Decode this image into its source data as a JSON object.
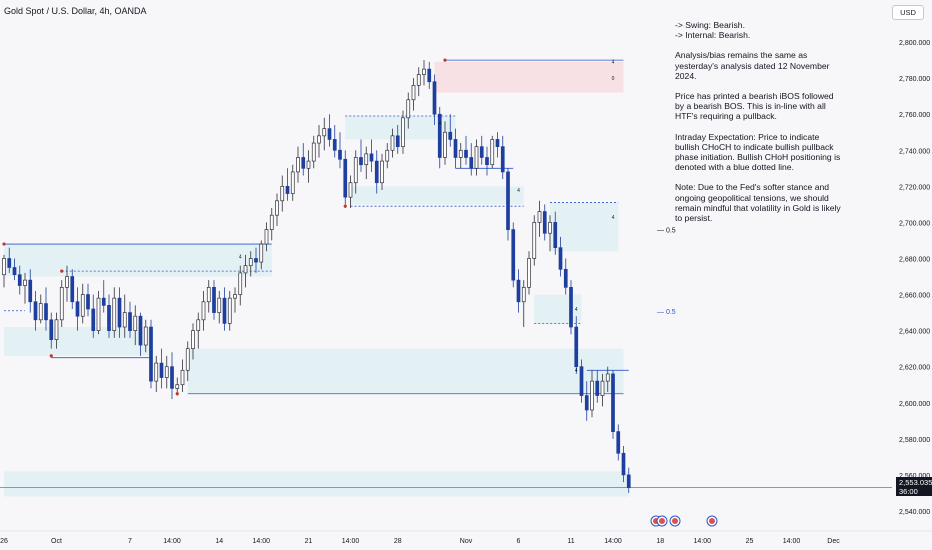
{
  "header": {
    "title": "Gold Spot / U.S. Dollar, 4h, OANDA",
    "currency_button": "USD"
  },
  "analysis": {
    "swing": "-> Swing:  Bearish.",
    "internal": "-> Internal:  Bearish.",
    "p1": "Analysis/bias remains the same as yesterday's analysis dated 12 November 2024.",
    "p2": "Price has printed a bearish iBOS followed by a bearish BOS.  This is in-line with all HTF's requiring a pullback.",
    "p3": "Intraday Expectation: Price to indicate bullish CHoCH to indicate bullish pullback phase initiation.  Bullish CHoH positioning is denoted with a blue dotted line.",
    "p4": "Note: Due to the Fed's softer stance and ongoing geopolitical tensions, we should remain mindful that volatility in Gold is likely to persist."
  },
  "price_tag": {
    "price": "2,553.035",
    "countdown": "36:00"
  },
  "colors": {
    "bull": "#2e2f38",
    "bear": "#1e3f9e",
    "zone": "#e4f1f4",
    "supply": "#f8e1e4",
    "line": "#2c55c9",
    "axis_text": "#131722"
  },
  "chart_data": {
    "type": "candlestick",
    "title": "Gold Spot / U.S. Dollar, 4h, OANDA",
    "ylim": [
      2535,
      2815
    ],
    "y_ticks": [
      "2,800.000",
      "2,780.000",
      "2,760.000",
      "2,740.000",
      "2,720.000",
      "2,700.000",
      "2,680.000",
      "2,660.000",
      "2,640.000",
      "2,620.000",
      "2,600.000",
      "2,580.000",
      "2,560.000",
      "2,540.000"
    ],
    "y_tick_values": [
      2800,
      2780,
      2760,
      2740,
      2720,
      2700,
      2680,
      2660,
      2640,
      2620,
      2600,
      2580,
      2560,
      2540
    ],
    "x_ticks": [
      {
        "label": "26",
        "i": 0
      },
      {
        "label": "Oct",
        "i": 10
      },
      {
        "label": "7",
        "i": 24
      },
      {
        "label": "14:00",
        "i": 32
      },
      {
        "label": "14",
        "i": 41
      },
      {
        "label": "14:00",
        "i": 49
      },
      {
        "label": "21",
        "i": 58
      },
      {
        "label": "14:00",
        "i": 66
      },
      {
        "label": "28",
        "i": 75
      },
      {
        "label": "Nov",
        "i": 88
      },
      {
        "label": "6",
        "i": 98
      },
      {
        "label": "11",
        "i": 108
      },
      {
        "label": "14:00",
        "i": 116
      },
      {
        "label": "18",
        "i": 125
      },
      {
        "label": "14:00",
        "i": 133
      },
      {
        "label": "25",
        "i": 142
      },
      {
        "label": "14:00",
        "i": 150
      },
      {
        "label": "Dec",
        "i": 158
      }
    ],
    "fib_labels": [
      {
        "label": "0.5",
        "value": 2696
      },
      {
        "label": "0.5",
        "value": 2651
      }
    ],
    "zones": [
      {
        "type": "demand",
        "i0": 0,
        "i1": 51,
        "y0": 2670,
        "y1": 2688
      },
      {
        "type": "demand",
        "i0": 0,
        "i1": 28,
        "y0": 2626,
        "y1": 2642
      },
      {
        "type": "demand",
        "i0": 35,
        "i1": 118,
        "y0": 2605,
        "y1": 2630
      },
      {
        "type": "demand",
        "i0": 65,
        "i1": 86,
        "y0": 2746,
        "y1": 2759
      },
      {
        "type": "demand",
        "i0": 66,
        "i1": 99,
        "y0": 2710,
        "y1": 2720
      },
      {
        "type": "demand",
        "i0": 104,
        "i1": 117,
        "y0": 2684,
        "y1": 2711
      },
      {
        "type": "demand",
        "i0": 101,
        "i1": 110,
        "y0": 2644,
        "y1": 2660
      },
      {
        "type": "demand",
        "i0": 0,
        "i1": 119,
        "y0": 2548,
        "y1": 2562
      },
      {
        "type": "supply",
        "i0": 82,
        "i1": 118,
        "y0": 2772,
        "y1": 2789
      }
    ],
    "lines": [
      {
        "i0": 0,
        "i1": 51,
        "y": 2688,
        "style": "solid"
      },
      {
        "i0": 11,
        "i1": 51,
        "y": 2673,
        "style": "dashed"
      },
      {
        "i0": 9,
        "i1": 28,
        "y": 2625,
        "style": "solid"
      },
      {
        "i0": 35,
        "i1": 118,
        "y": 2605,
        "style": "solid"
      },
      {
        "i0": 65,
        "i1": 86,
        "y": 2759,
        "style": "dashed"
      },
      {
        "i0": 66,
        "i1": 99,
        "y": 2709,
        "style": "dashed"
      },
      {
        "i0": 84,
        "i1": 118,
        "y": 2790,
        "style": "solid"
      },
      {
        "i0": 86,
        "i1": 97,
        "y": 2730,
        "style": "solid"
      },
      {
        "i0": 104,
        "i1": 117,
        "y": 2711,
        "style": "dashed"
      },
      {
        "i0": 101,
        "i1": 110,
        "y": 2644,
        "style": "dashed"
      },
      {
        "i0": 111,
        "i1": 119,
        "y": 2618,
        "style": "solid"
      },
      {
        "i0": 0,
        "i1": 4,
        "y": 2651,
        "style": "dashed"
      }
    ],
    "markers": [
      {
        "label": "4",
        "i": 45,
        "y": 2680
      },
      {
        "label": "4",
        "i": 116,
        "y": 2788
      },
      {
        "label": "0",
        "i": 116,
        "y": 2779
      },
      {
        "label": "4",
        "i": 83,
        "y": 2754
      },
      {
        "label": "4",
        "i": 98,
        "y": 2717
      },
      {
        "label": "4",
        "i": 116,
        "y": 2702
      },
      {
        "label": "4",
        "i": 109,
        "y": 2651
      },
      {
        "label": "4",
        "i": 109,
        "y": 2617
      }
    ],
    "candles": [
      [
        2671,
        2682,
        2664,
        2680
      ],
      [
        2680,
        2686,
        2672,
        2675
      ],
      [
        2675,
        2680,
        2668,
        2671
      ],
      [
        2671,
        2676,
        2660,
        2665
      ],
      [
        2665,
        2672,
        2655,
        2668
      ],
      [
        2668,
        2674,
        2650,
        2656
      ],
      [
        2656,
        2662,
        2640,
        2646
      ],
      [
        2646,
        2660,
        2644,
        2655
      ],
      [
        2655,
        2664,
        2640,
        2646
      ],
      [
        2646,
        2650,
        2630,
        2635
      ],
      [
        2635,
        2650,
        2630,
        2646
      ],
      [
        2646,
        2668,
        2642,
        2664
      ],
      [
        2664,
        2676,
        2656,
        2670
      ],
      [
        2670,
        2674,
        2652,
        2656
      ],
      [
        2656,
        2664,
        2640,
        2648
      ],
      [
        2648,
        2666,
        2644,
        2660
      ],
      [
        2660,
        2666,
        2648,
        2652
      ],
      [
        2652,
        2660,
        2636,
        2640
      ],
      [
        2640,
        2662,
        2638,
        2658
      ],
      [
        2658,
        2668,
        2650,
        2654
      ],
      [
        2654,
        2660,
        2636,
        2640
      ],
      [
        2640,
        2664,
        2636,
        2658
      ],
      [
        2658,
        2664,
        2636,
        2642
      ],
      [
        2642,
        2660,
        2636,
        2650
      ],
      [
        2650,
        2656,
        2636,
        2640
      ],
      [
        2640,
        2654,
        2632,
        2648
      ],
      [
        2648,
        2650,
        2626,
        2632
      ],
      [
        2632,
        2646,
        2628,
        2642
      ],
      [
        2642,
        2646,
        2608,
        2612
      ],
      [
        2612,
        2626,
        2606,
        2622
      ],
      [
        2622,
        2630,
        2608,
        2614
      ],
      [
        2614,
        2626,
        2608,
        2620
      ],
      [
        2620,
        2628,
        2602,
        2608
      ],
      [
        2608,
        2614,
        2604,
        2610
      ],
      [
        2610,
        2624,
        2606,
        2618
      ],
      [
        2618,
        2634,
        2612,
        2630
      ],
      [
        2630,
        2644,
        2624,
        2640
      ],
      [
        2640,
        2650,
        2630,
        2646
      ],
      [
        2646,
        2662,
        2640,
        2656
      ],
      [
        2656,
        2668,
        2650,
        2664
      ],
      [
        2664,
        2668,
        2646,
        2650
      ],
      [
        2650,
        2662,
        2644,
        2658
      ],
      [
        2658,
        2664,
        2640,
        2644
      ],
      [
        2644,
        2662,
        2640,
        2658
      ],
      [
        2658,
        2664,
        2650,
        2660
      ],
      [
        2660,
        2676,
        2654,
        2672
      ],
      [
        2672,
        2682,
        2664,
        2676
      ],
      [
        2676,
        2684,
        2670,
        2680
      ],
      [
        2680,
        2686,
        2672,
        2678
      ],
      [
        2678,
        2690,
        2674,
        2688
      ],
      [
        2688,
        2700,
        2684,
        2696
      ],
      [
        2696,
        2708,
        2690,
        2704
      ],
      [
        2704,
        2716,
        2698,
        2712
      ],
      [
        2712,
        2726,
        2706,
        2720
      ],
      [
        2720,
        2730,
        2712,
        2716
      ],
      [
        2716,
        2732,
        2712,
        2728
      ],
      [
        2728,
        2742,
        2722,
        2736
      ],
      [
        2736,
        2744,
        2726,
        2730
      ],
      [
        2730,
        2740,
        2722,
        2734
      ],
      [
        2734,
        2748,
        2730,
        2744
      ],
      [
        2744,
        2754,
        2736,
        2748
      ],
      [
        2748,
        2758,
        2740,
        2752
      ],
      [
        2752,
        2760,
        2742,
        2746
      ],
      [
        2746,
        2754,
        2736,
        2740
      ],
      [
        2740,
        2750,
        2730,
        2735
      ],
      [
        2735,
        2740,
        2708,
        2714
      ],
      [
        2714,
        2726,
        2708,
        2722
      ],
      [
        2722,
        2740,
        2716,
        2736
      ],
      [
        2736,
        2746,
        2728,
        2732
      ],
      [
        2732,
        2742,
        2724,
        2738
      ],
      [
        2738,
        2746,
        2728,
        2734
      ],
      [
        2734,
        2740,
        2716,
        2722
      ],
      [
        2722,
        2738,
        2718,
        2734
      ],
      [
        2734,
        2744,
        2730,
        2740
      ],
      [
        2740,
        2752,
        2736,
        2748
      ],
      [
        2748,
        2754,
        2738,
        2742
      ],
      [
        2742,
        2762,
        2738,
        2758
      ],
      [
        2758,
        2772,
        2752,
        2768
      ],
      [
        2768,
        2780,
        2762,
        2776
      ],
      [
        2776,
        2786,
        2770,
        2782
      ],
      [
        2782,
        2790,
        2776,
        2785
      ],
      [
        2785,
        2789,
        2774,
        2778
      ],
      [
        2778,
        2782,
        2754,
        2760
      ],
      [
        2760,
        2764,
        2730,
        2736
      ],
      [
        2736,
        2756,
        2732,
        2750
      ],
      [
        2750,
        2760,
        2742,
        2746
      ],
      [
        2746,
        2752,
        2730,
        2736
      ],
      [
        2736,
        2744,
        2730,
        2740
      ],
      [
        2740,
        2748,
        2732,
        2736
      ],
      [
        2736,
        2744,
        2726,
        2730
      ],
      [
        2730,
        2746,
        2726,
        2742
      ],
      [
        2742,
        2748,
        2732,
        2736
      ],
      [
        2736,
        2742,
        2726,
        2732
      ],
      [
        2732,
        2748,
        2730,
        2746
      ],
      [
        2746,
        2750,
        2736,
        2742
      ],
      [
        2742,
        2748,
        2724,
        2728
      ],
      [
        2728,
        2730,
        2690,
        2696
      ],
      [
        2696,
        2700,
        2664,
        2668
      ],
      [
        2668,
        2674,
        2650,
        2656
      ],
      [
        2656,
        2668,
        2642,
        2664
      ],
      [
        2664,
        2684,
        2660,
        2680
      ],
      [
        2680,
        2704,
        2676,
        2700
      ],
      [
        2700,
        2712,
        2692,
        2706
      ],
      [
        2706,
        2710,
        2690,
        2694
      ],
      [
        2694,
        2704,
        2684,
        2700
      ],
      [
        2700,
        2706,
        2682,
        2686
      ],
      [
        2686,
        2692,
        2670,
        2674
      ],
      [
        2674,
        2680,
        2660,
        2664
      ],
      [
        2664,
        2668,
        2638,
        2642
      ],
      [
        2642,
        2648,
        2616,
        2620
      ],
      [
        2620,
        2624,
        2600,
        2604
      ],
      [
        2604,
        2612,
        2590,
        2596
      ],
      [
        2596,
        2618,
        2592,
        2612
      ],
      [
        2612,
        2618,
        2600,
        2604
      ],
      [
        2604,
        2616,
        2598,
        2612
      ],
      [
        2612,
        2620,
        2606,
        2616
      ],
      [
        2616,
        2618,
        2580,
        2584
      ],
      [
        2584,
        2588,
        2568,
        2572
      ],
      [
        2572,
        2576,
        2556,
        2560
      ],
      [
        2560,
        2564,
        2550,
        2553
      ]
    ]
  }
}
